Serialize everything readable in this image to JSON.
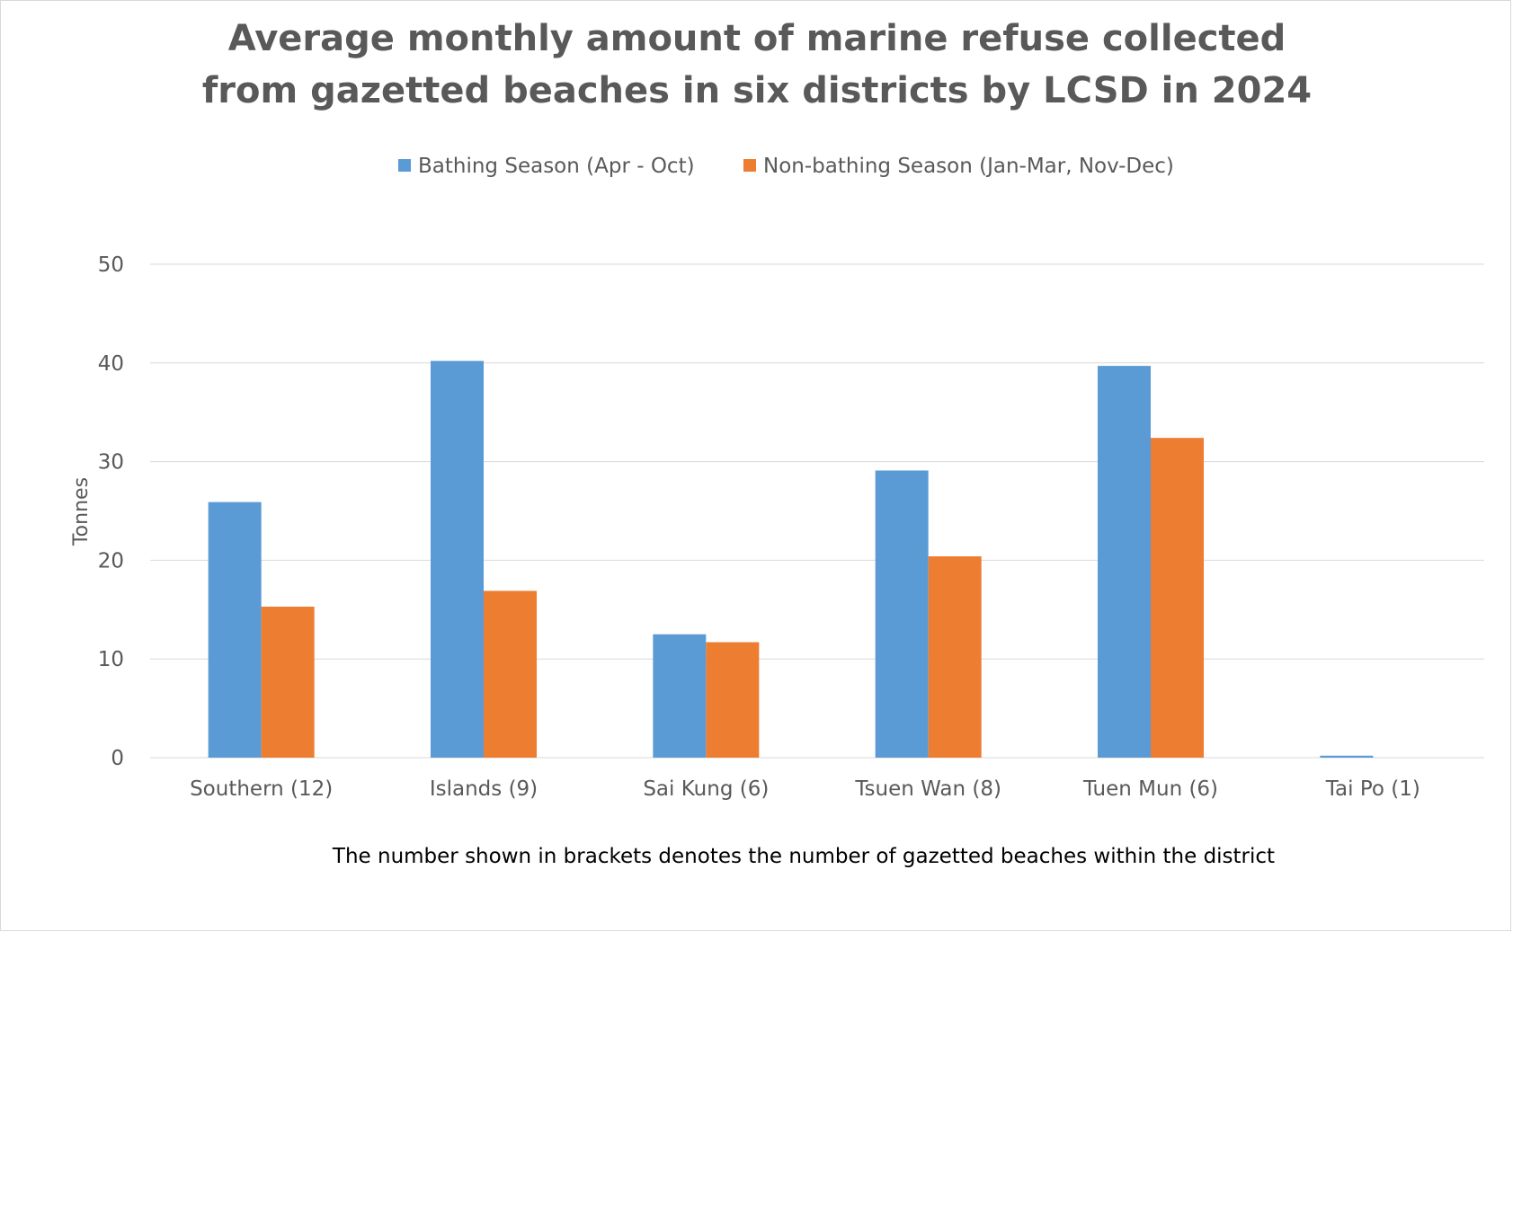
{
  "chart_data": {
    "type": "bar",
    "title_lines": [
      "Average monthly amount of marine refuse collected",
      "from gazetted beaches in six districts by LCSD in 2024"
    ],
    "xlabel": "",
    "ylabel": "Tonnes",
    "ylim": [
      0,
      50
    ],
    "y_ticks": [
      0,
      10,
      20,
      30,
      40,
      50
    ],
    "grid": true,
    "legend_position": "top",
    "categories": [
      "Southern (12)",
      "Islands (9)",
      "Sai Kung (6)",
      "Tsuen Wan (8)",
      "Tuen Mun (6)",
      "Tai Po (1)"
    ],
    "series": [
      {
        "name": "Bathing Season (Apr - Oct)",
        "color": "#5b9bd5",
        "values": [
          25.9,
          40.2,
          12.5,
          29.1,
          39.7,
          0.2
        ]
      },
      {
        "name": "Non-bathing Season (Jan-Mar, Nov-Dec)",
        "color": "#ed7d31",
        "values": [
          15.3,
          16.9,
          11.7,
          20.4,
          32.4,
          0
        ]
      }
    ],
    "note": "The number shown in brackets denotes the number of gazetted beaches within the district"
  }
}
